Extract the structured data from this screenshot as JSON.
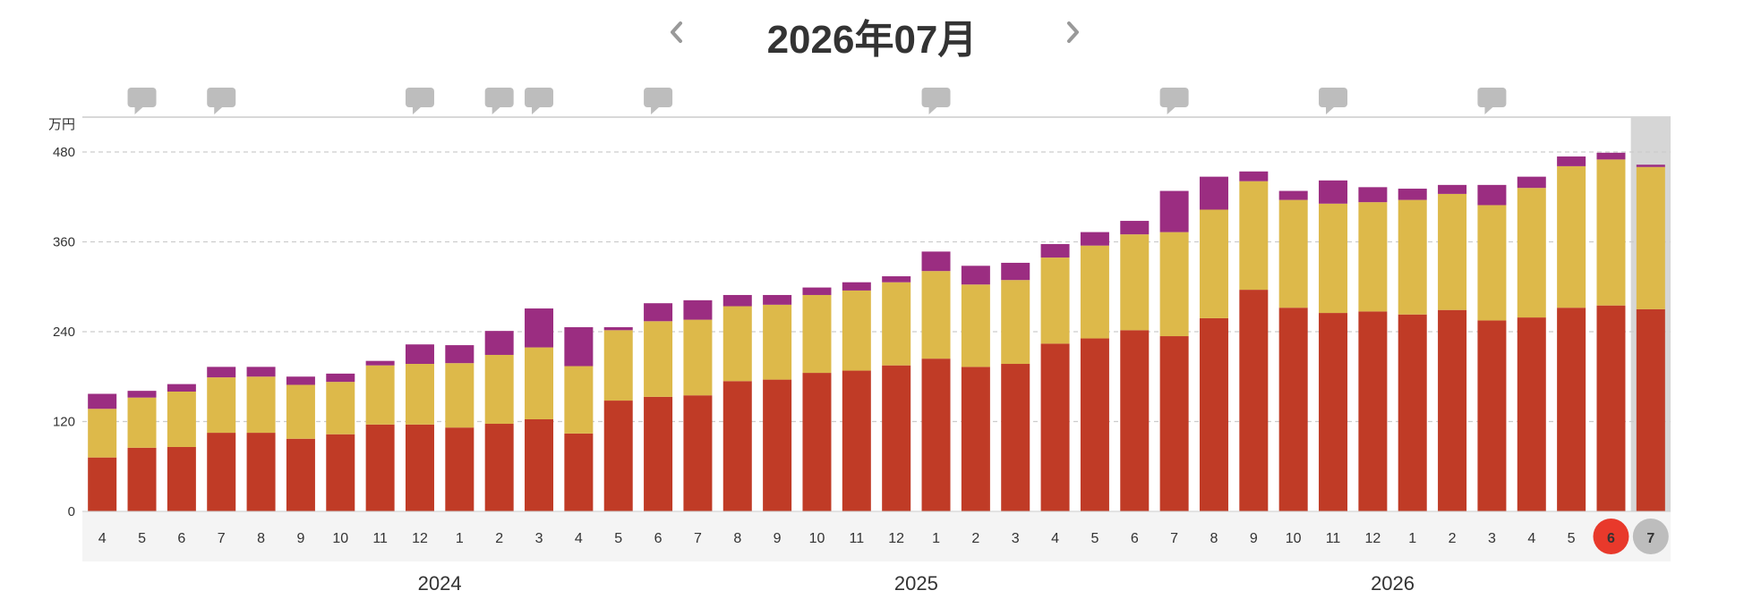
{
  "header": {
    "title": "2026年07月",
    "prev_icon": "chevron-left-icon",
    "next_icon": "chevron-right-icon"
  },
  "chart_data": {
    "type": "bar",
    "stacked": true,
    "unit": "万円",
    "ylim": [
      0,
      480
    ],
    "yticks": [
      0,
      120,
      240,
      360,
      480
    ],
    "grid": true,
    "categories": [
      "4",
      "5",
      "6",
      "7",
      "8",
      "9",
      "10",
      "11",
      "12",
      "1",
      "2",
      "3",
      "4",
      "5",
      "6",
      "7",
      "8",
      "9",
      "10",
      "11",
      "12",
      "1",
      "2",
      "3",
      "4",
      "5",
      "6",
      "7",
      "8",
      "9",
      "10",
      "11",
      "12",
      "1",
      "2",
      "3",
      "4",
      "5",
      "6",
      "7"
    ],
    "years": [
      {
        "label": "2024",
        "center_index": 9
      },
      {
        "label": "2025",
        "center_index": 21
      },
      {
        "label": "2026",
        "center_index": 33
      }
    ],
    "series": [
      {
        "color": "#c03b26",
        "values": [
          72,
          85,
          86,
          105,
          105,
          97,
          103,
          116,
          116,
          112,
          117,
          123,
          104,
          148,
          153,
          155,
          174,
          176,
          185,
          188,
          195,
          204,
          193,
          197,
          224,
          231,
          242,
          234,
          258,
          296,
          272,
          265,
          267,
          263,
          269,
          255,
          259,
          272,
          275,
          270
        ]
      },
      {
        "color": "#ddb94a",
        "values": [
          65,
          67,
          74,
          74,
          75,
          72,
          70,
          79,
          81,
          86,
          92,
          96,
          90,
          94,
          101,
          101,
          100,
          100,
          104,
          107,
          111,
          117,
          110,
          112,
          115,
          124,
          128,
          139,
          145,
          145,
          144,
          146,
          146,
          153,
          155,
          154,
          173,
          189,
          195,
          190
        ]
      },
      {
        "color": "#9b2d81",
        "values": [
          20,
          9,
          10,
          14,
          13,
          11,
          11,
          6,
          26,
          24,
          32,
          52,
          52,
          4,
          24,
          26,
          15,
          13,
          10,
          11,
          8,
          26,
          25,
          23,
          18,
          18,
          18,
          55,
          44,
          13,
          12,
          31,
          20,
          15,
          12,
          27,
          15,
          13,
          9,
          3
        ]
      }
    ],
    "selected_index": 38,
    "current_index": 39,
    "comment_markers": [
      1,
      3,
      8,
      10,
      11,
      14,
      21,
      27,
      31,
      35
    ],
    "comment_icon": "speech-bubble-icon"
  }
}
